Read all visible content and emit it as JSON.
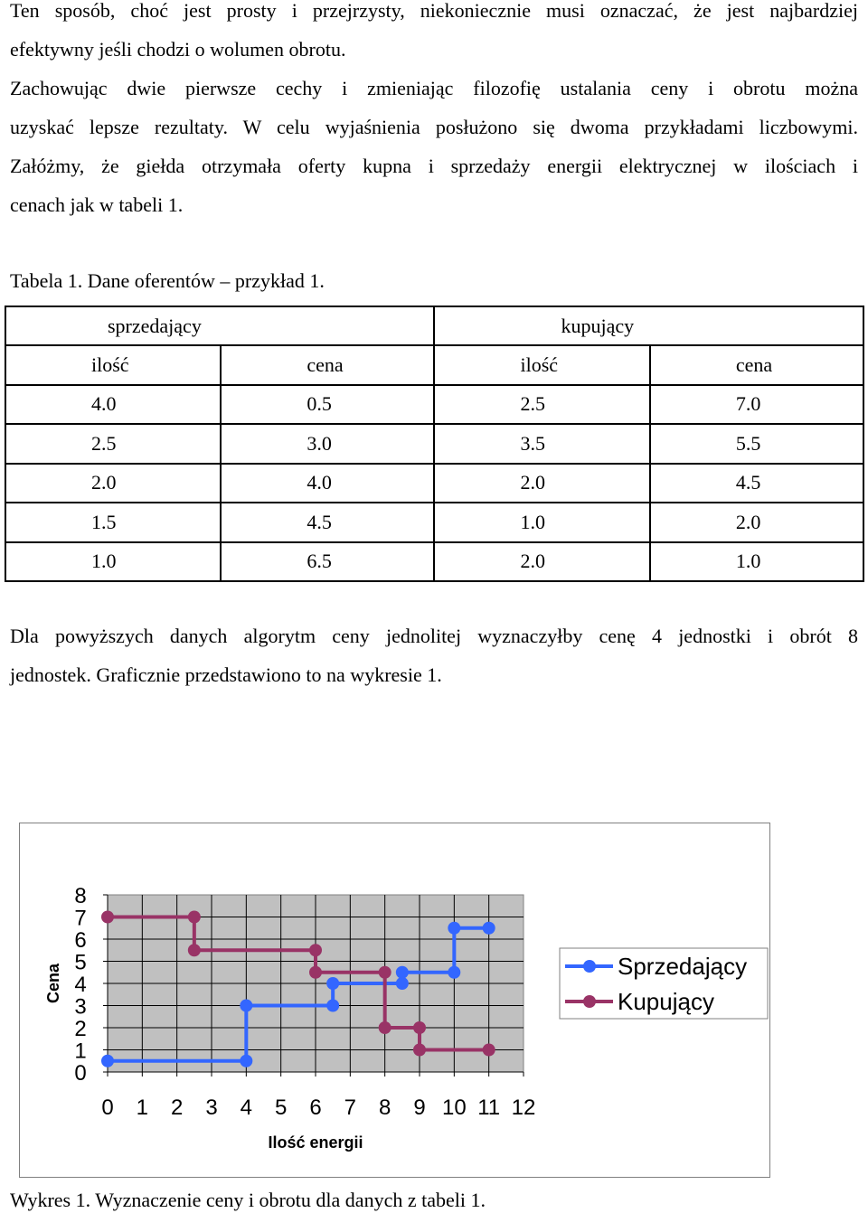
{
  "paragraph1": {
    "lines": [
      "Ten sposób, choć jest prosty i przejrzysty, niekoniecznie musi oznaczać, że jest najbardziej",
      "efektywny jeśli chodzi o wolumen obrotu."
    ]
  },
  "paragraph2": {
    "lines": [
      "Zachowując dwie pierwsze cechy i zmieniając filozofię ustalania ceny i obrotu można",
      "uzyskać lepsze rezultaty. W celu wyjaśnienia posłużono się dwoma przykładami liczbowymi.",
      "Załóżmy, że giełda otrzymała oferty kupna i sprzedaży energii elektrycznej w ilościach i",
      "cenach jak w tabeli 1."
    ]
  },
  "table": {
    "caption": "Tabela 1. Dane oferentów – przykład 1.",
    "group_headers": [
      "sprzedający",
      "kupujący"
    ],
    "column_headers": [
      "ilość",
      "cena",
      "ilość",
      "cena"
    ],
    "rows": [
      [
        "4.0",
        "0.5",
        "2.5",
        "7.0"
      ],
      [
        "2.5",
        "3.0",
        "3.5",
        "5.5"
      ],
      [
        "2.0",
        "4.0",
        "2.0",
        "4.5"
      ],
      [
        "1.5",
        "4.5",
        "1.0",
        "2.0"
      ],
      [
        "1.0",
        "6.5",
        "2.0",
        "1.0"
      ]
    ]
  },
  "paragraph3": {
    "lines": [
      "Dla powyższych danych algorytm ceny jednolitej wyznaczyłby cenę 4 jednostki i obrót 8",
      "jednostek. Graficznie przedstawiono to na wykresie 1."
    ]
  },
  "chart_caption": "Wykres 1. Wyznaczenie ceny i obrotu dla danych z tabeli 1.",
  "chart_data": {
    "type": "line",
    "xlabel": "Ilość energii",
    "ylabel": "Cena",
    "xlim": [
      0,
      12
    ],
    "ylim": [
      0,
      8
    ],
    "x_ticks": [
      "0",
      "1",
      "2",
      "3",
      "4",
      "5",
      "6",
      "7",
      "8",
      "9",
      "10",
      "11",
      "12"
    ],
    "y_ticks": [
      "0",
      "1",
      "2",
      "3",
      "4",
      "5",
      "6",
      "7",
      "8"
    ],
    "grid": true,
    "legend_position": "right",
    "plot_background": "#c0c0c0",
    "series": [
      {
        "name": "Sprzedający",
        "color": "#3366ff",
        "points": [
          [
            0,
            0.5
          ],
          [
            4,
            0.5
          ],
          [
            4,
            3
          ],
          [
            6.5,
            3
          ],
          [
            6.5,
            4
          ],
          [
            8.5,
            4
          ],
          [
            8.5,
            4.5
          ],
          [
            10,
            4.5
          ],
          [
            10,
            6.5
          ],
          [
            11,
            6.5
          ]
        ]
      },
      {
        "name": "Kupujący",
        "color": "#993366",
        "points": [
          [
            0,
            7
          ],
          [
            2.5,
            7
          ],
          [
            2.5,
            5.5
          ],
          [
            6,
            5.5
          ],
          [
            6,
            4.5
          ],
          [
            8,
            4.5
          ],
          [
            8,
            2
          ],
          [
            9,
            2
          ],
          [
            9,
            1
          ],
          [
            11,
            1
          ]
        ]
      }
    ]
  }
}
